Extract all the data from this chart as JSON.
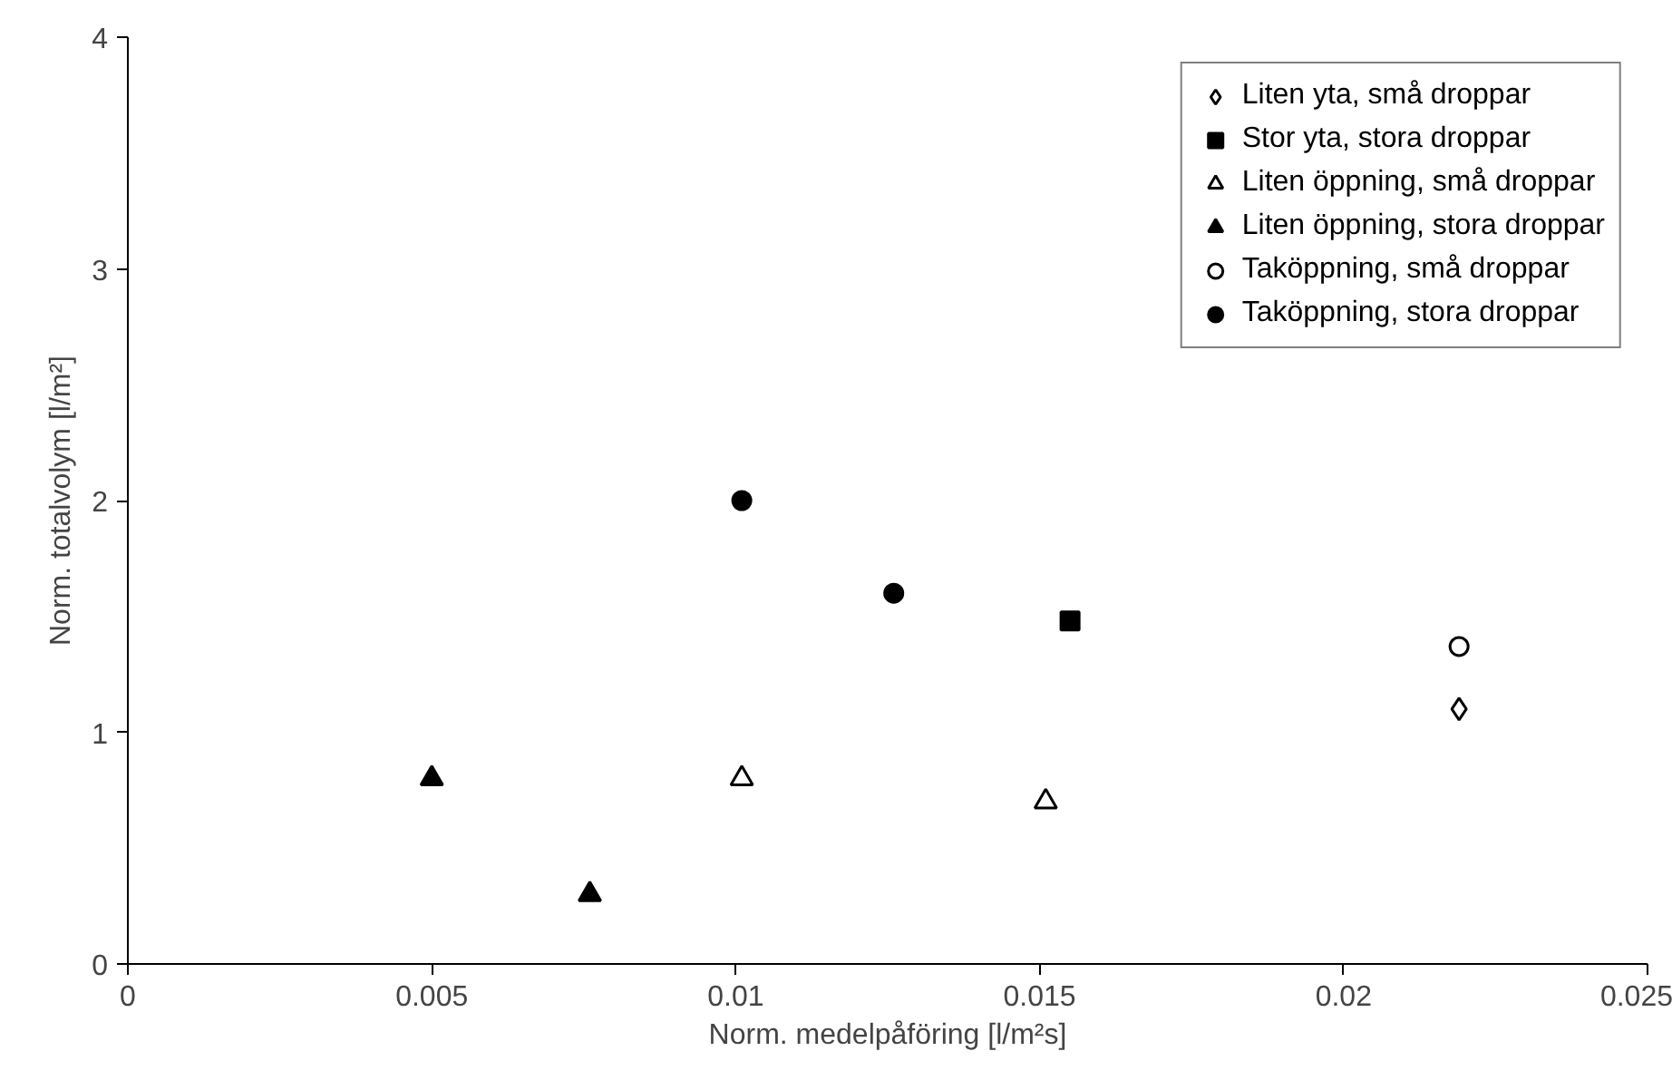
{
  "chart_data": {
    "type": "scatter",
    "xlabel": "Norm. medelpåföring [l/m²s]",
    "ylabel": "Norm. totalvolym [l/m²]",
    "xlim": [
      0,
      0.025
    ],
    "xticks": [
      0,
      0.005,
      0.01,
      0.015,
      0.02,
      0.025
    ],
    "ylim": [
      0,
      4
    ],
    "yticks": [
      0,
      1,
      2,
      3,
      4
    ],
    "grid": false,
    "legend": "top right",
    "series": [
      {
        "name": "Liten yta, små droppar",
        "color": "#ffffff",
        "marker": "diamond",
        "x": [
          0.0219
        ],
        "values": [
          1.1
        ]
      },
      {
        "name": "Stor yta, stora droppar",
        "color": "#000000",
        "marker": "square",
        "x": [
          0.0155
        ],
        "values": [
          1.48
        ]
      },
      {
        "name": "Liten öppning, små droppar",
        "color": "#ffffff",
        "marker": "triangle",
        "x": [
          0.0101,
          0.0151
        ],
        "values": [
          0.8,
          0.7
        ]
      },
      {
        "name": "Liten öppning, stora droppar",
        "color": "#000000",
        "marker": "triangle",
        "x": [
          0.005,
          0.0076
        ],
        "values": [
          0.8,
          0.3
        ]
      },
      {
        "name": "Taköppning, små droppar",
        "color": "#ffffff",
        "marker": "circle",
        "x": [
          0.0219
        ],
        "values": [
          1.37
        ]
      },
      {
        "name": "Taköppning, stora droppar",
        "color": "#000000",
        "marker": "circle",
        "x": [
          0.0101,
          0.0126
        ],
        "values": [
          2.0,
          1.6
        ]
      }
    ]
  }
}
